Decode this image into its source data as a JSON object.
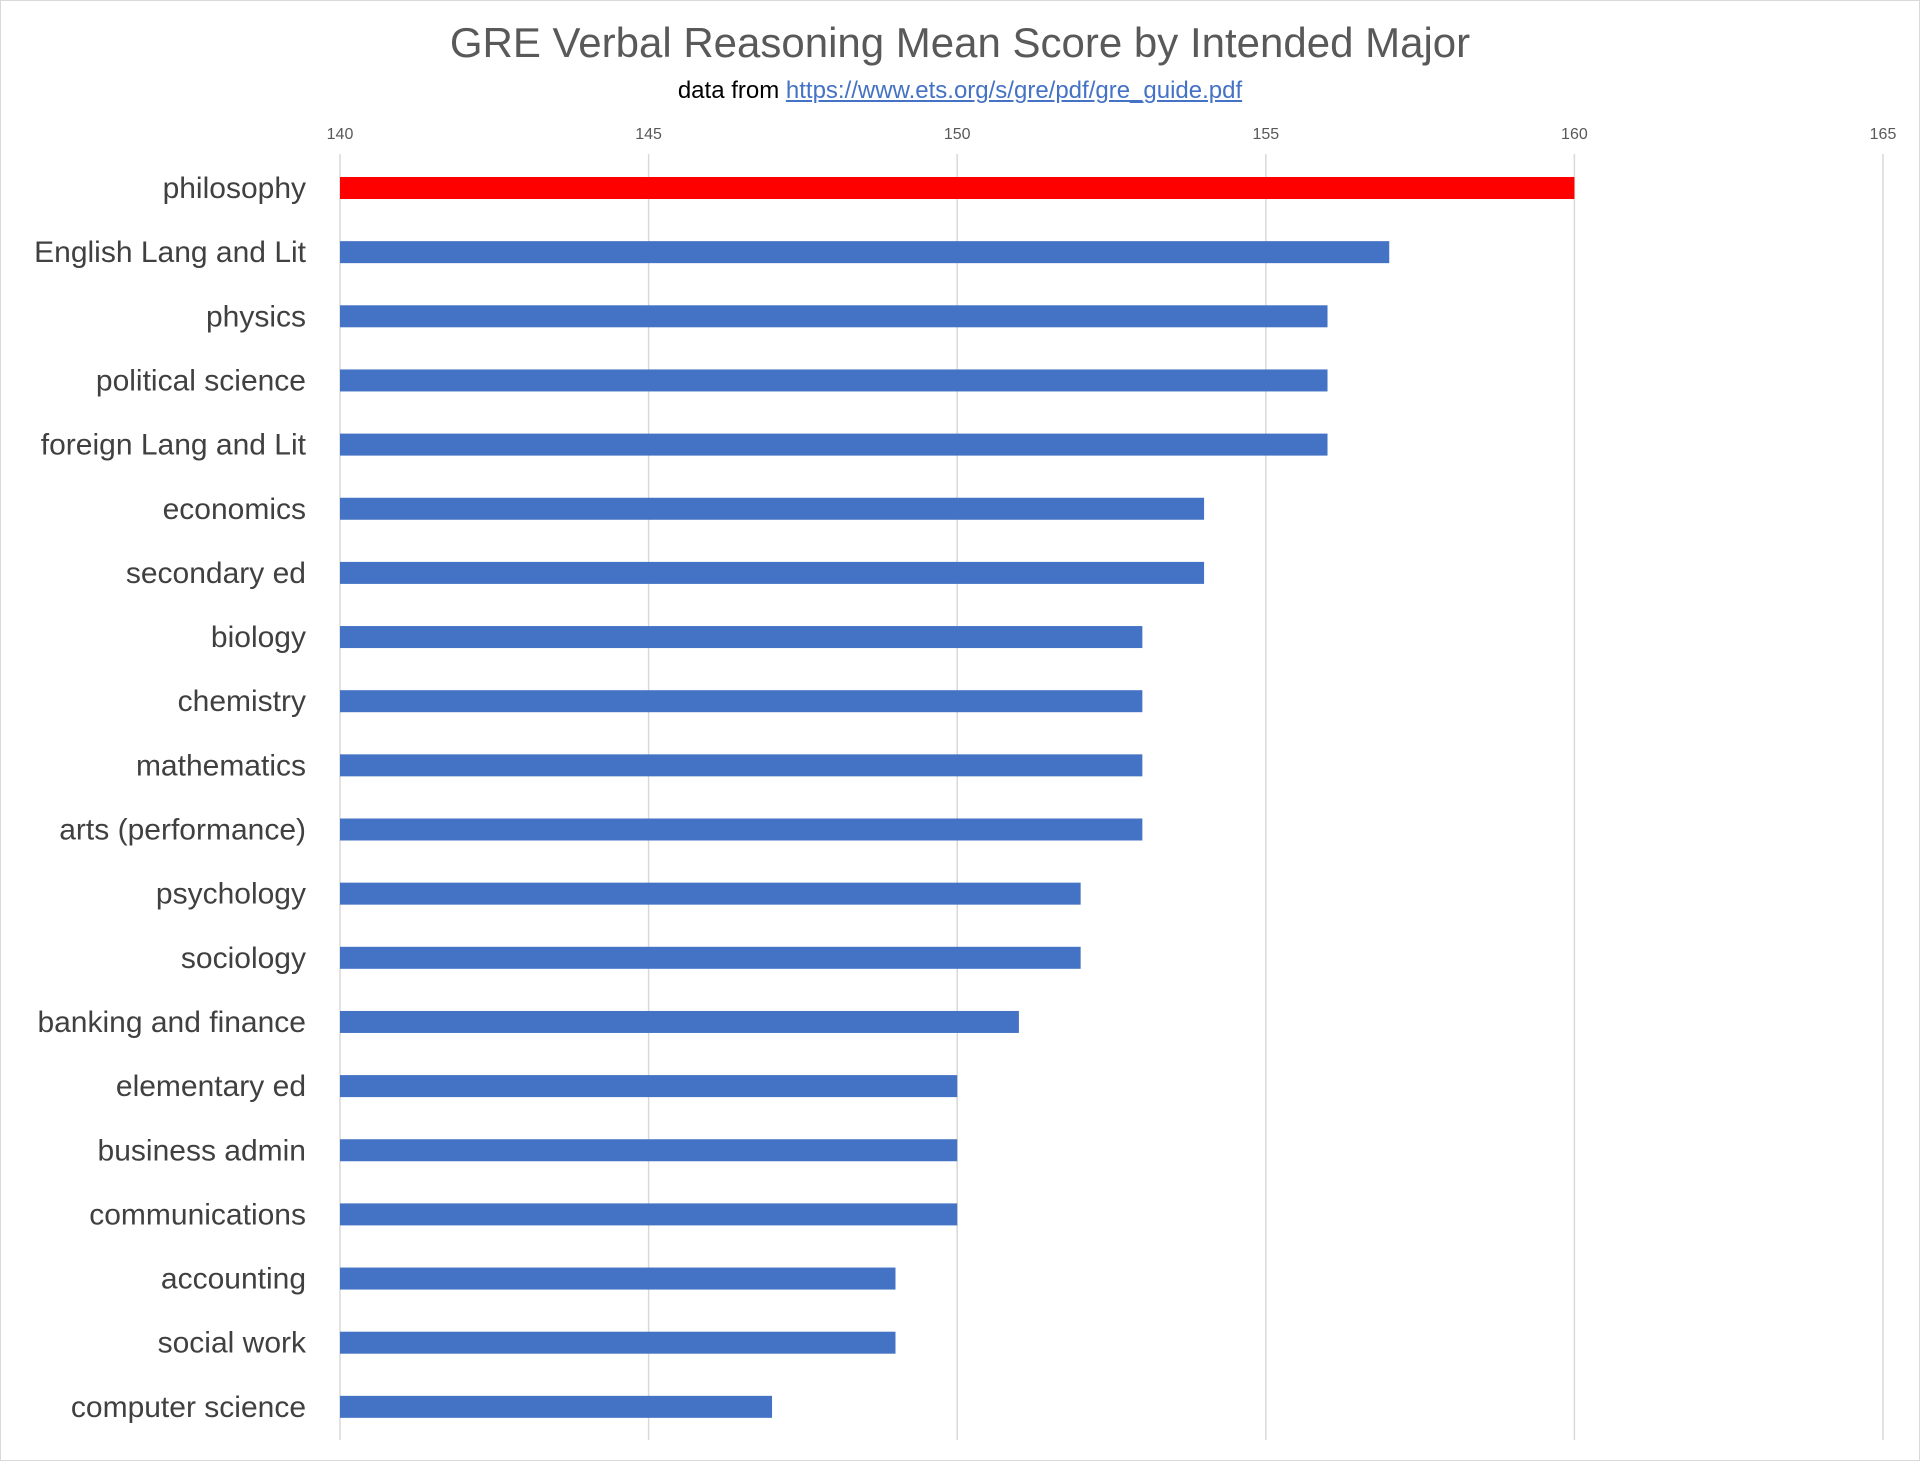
{
  "chart_data": {
    "type": "bar",
    "orientation": "horizontal",
    "title": "GRE Verbal Reasoning Mean Score by Intended Major",
    "subtitle_prefix": "data from",
    "subtitle_link": "https://www.ets.org/s/gre/pdf/gre_guide.pdf",
    "xlabel": "",
    "ylabel": "",
    "xlim": [
      140,
      165
    ],
    "xticks": [
      140,
      145,
      150,
      155,
      160,
      165
    ],
    "grid": "vertical",
    "legend": "none",
    "categories": [
      "philosophy",
      "English Lang and Lit",
      "physics",
      "political science",
      "foreign Lang and Lit",
      "economics",
      "secondary ed",
      "biology",
      "chemistry",
      "mathematics",
      "arts (performance)",
      "psychology",
      "sociology",
      "banking and finance",
      "elementary ed",
      "business admin",
      "communications",
      "accounting",
      "social work",
      "computer science"
    ],
    "values": [
      160,
      157,
      156,
      156,
      156,
      154,
      154,
      153,
      153,
      153,
      153,
      152,
      152,
      151,
      150,
      150,
      150,
      149,
      149,
      147
    ],
    "colors": {
      "default": "#4472c4",
      "highlight": "#ff0000",
      "highlight_category": "philosophy",
      "grid": "#d9d9d9"
    }
  }
}
